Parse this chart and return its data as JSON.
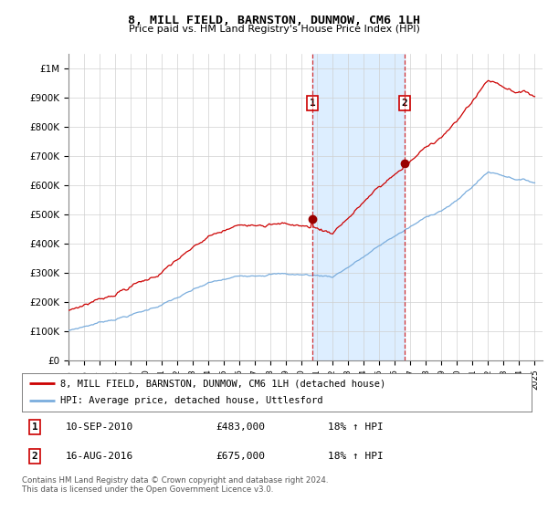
{
  "title": "8, MILL FIELD, BARNSTON, DUNMOW, CM6 1LH",
  "subtitle": "Price paid vs. HM Land Registry's House Price Index (HPI)",
  "ylabel_ticks": [
    "£0",
    "£100K",
    "£200K",
    "£300K",
    "£400K",
    "£500K",
    "£600K",
    "£700K",
    "£800K",
    "£900K",
    "£1M"
  ],
  "ytick_values": [
    0,
    100000,
    200000,
    300000,
    400000,
    500000,
    600000,
    700000,
    800000,
    900000,
    1000000
  ],
  "ylim": [
    0,
    1050000
  ],
  "xlim_start": 1995.0,
  "xlim_end": 2025.5,
  "sale1_x": 2010.69,
  "sale1_y": 483000,
  "sale1_label": "1",
  "sale1_date": "10-SEP-2010",
  "sale1_price": "£483,000",
  "sale1_hpi": "18% ↑ HPI",
  "sale2_x": 2016.62,
  "sale2_y": 675000,
  "sale2_label": "2",
  "sale2_date": "16-AUG-2016",
  "sale2_price": "£675,000",
  "sale2_hpi": "18% ↑ HPI",
  "line_color_house": "#cc0000",
  "line_color_hpi": "#7aaddd",
  "shade_color": "#ddeeff",
  "legend_house": "8, MILL FIELD, BARNSTON, DUNMOW, CM6 1LH (detached house)",
  "legend_hpi": "HPI: Average price, detached house, Uttlesford",
  "footnote": "Contains HM Land Registry data © Crown copyright and database right 2024.\nThis data is licensed under the Open Government Licence v3.0.",
  "xtick_years": [
    1995,
    1996,
    1997,
    1998,
    1999,
    2000,
    2001,
    2002,
    2003,
    2004,
    2005,
    2006,
    2007,
    2008,
    2009,
    2010,
    2011,
    2012,
    2013,
    2014,
    2015,
    2016,
    2017,
    2018,
    2019,
    2020,
    2021,
    2022,
    2023,
    2024,
    2025
  ]
}
